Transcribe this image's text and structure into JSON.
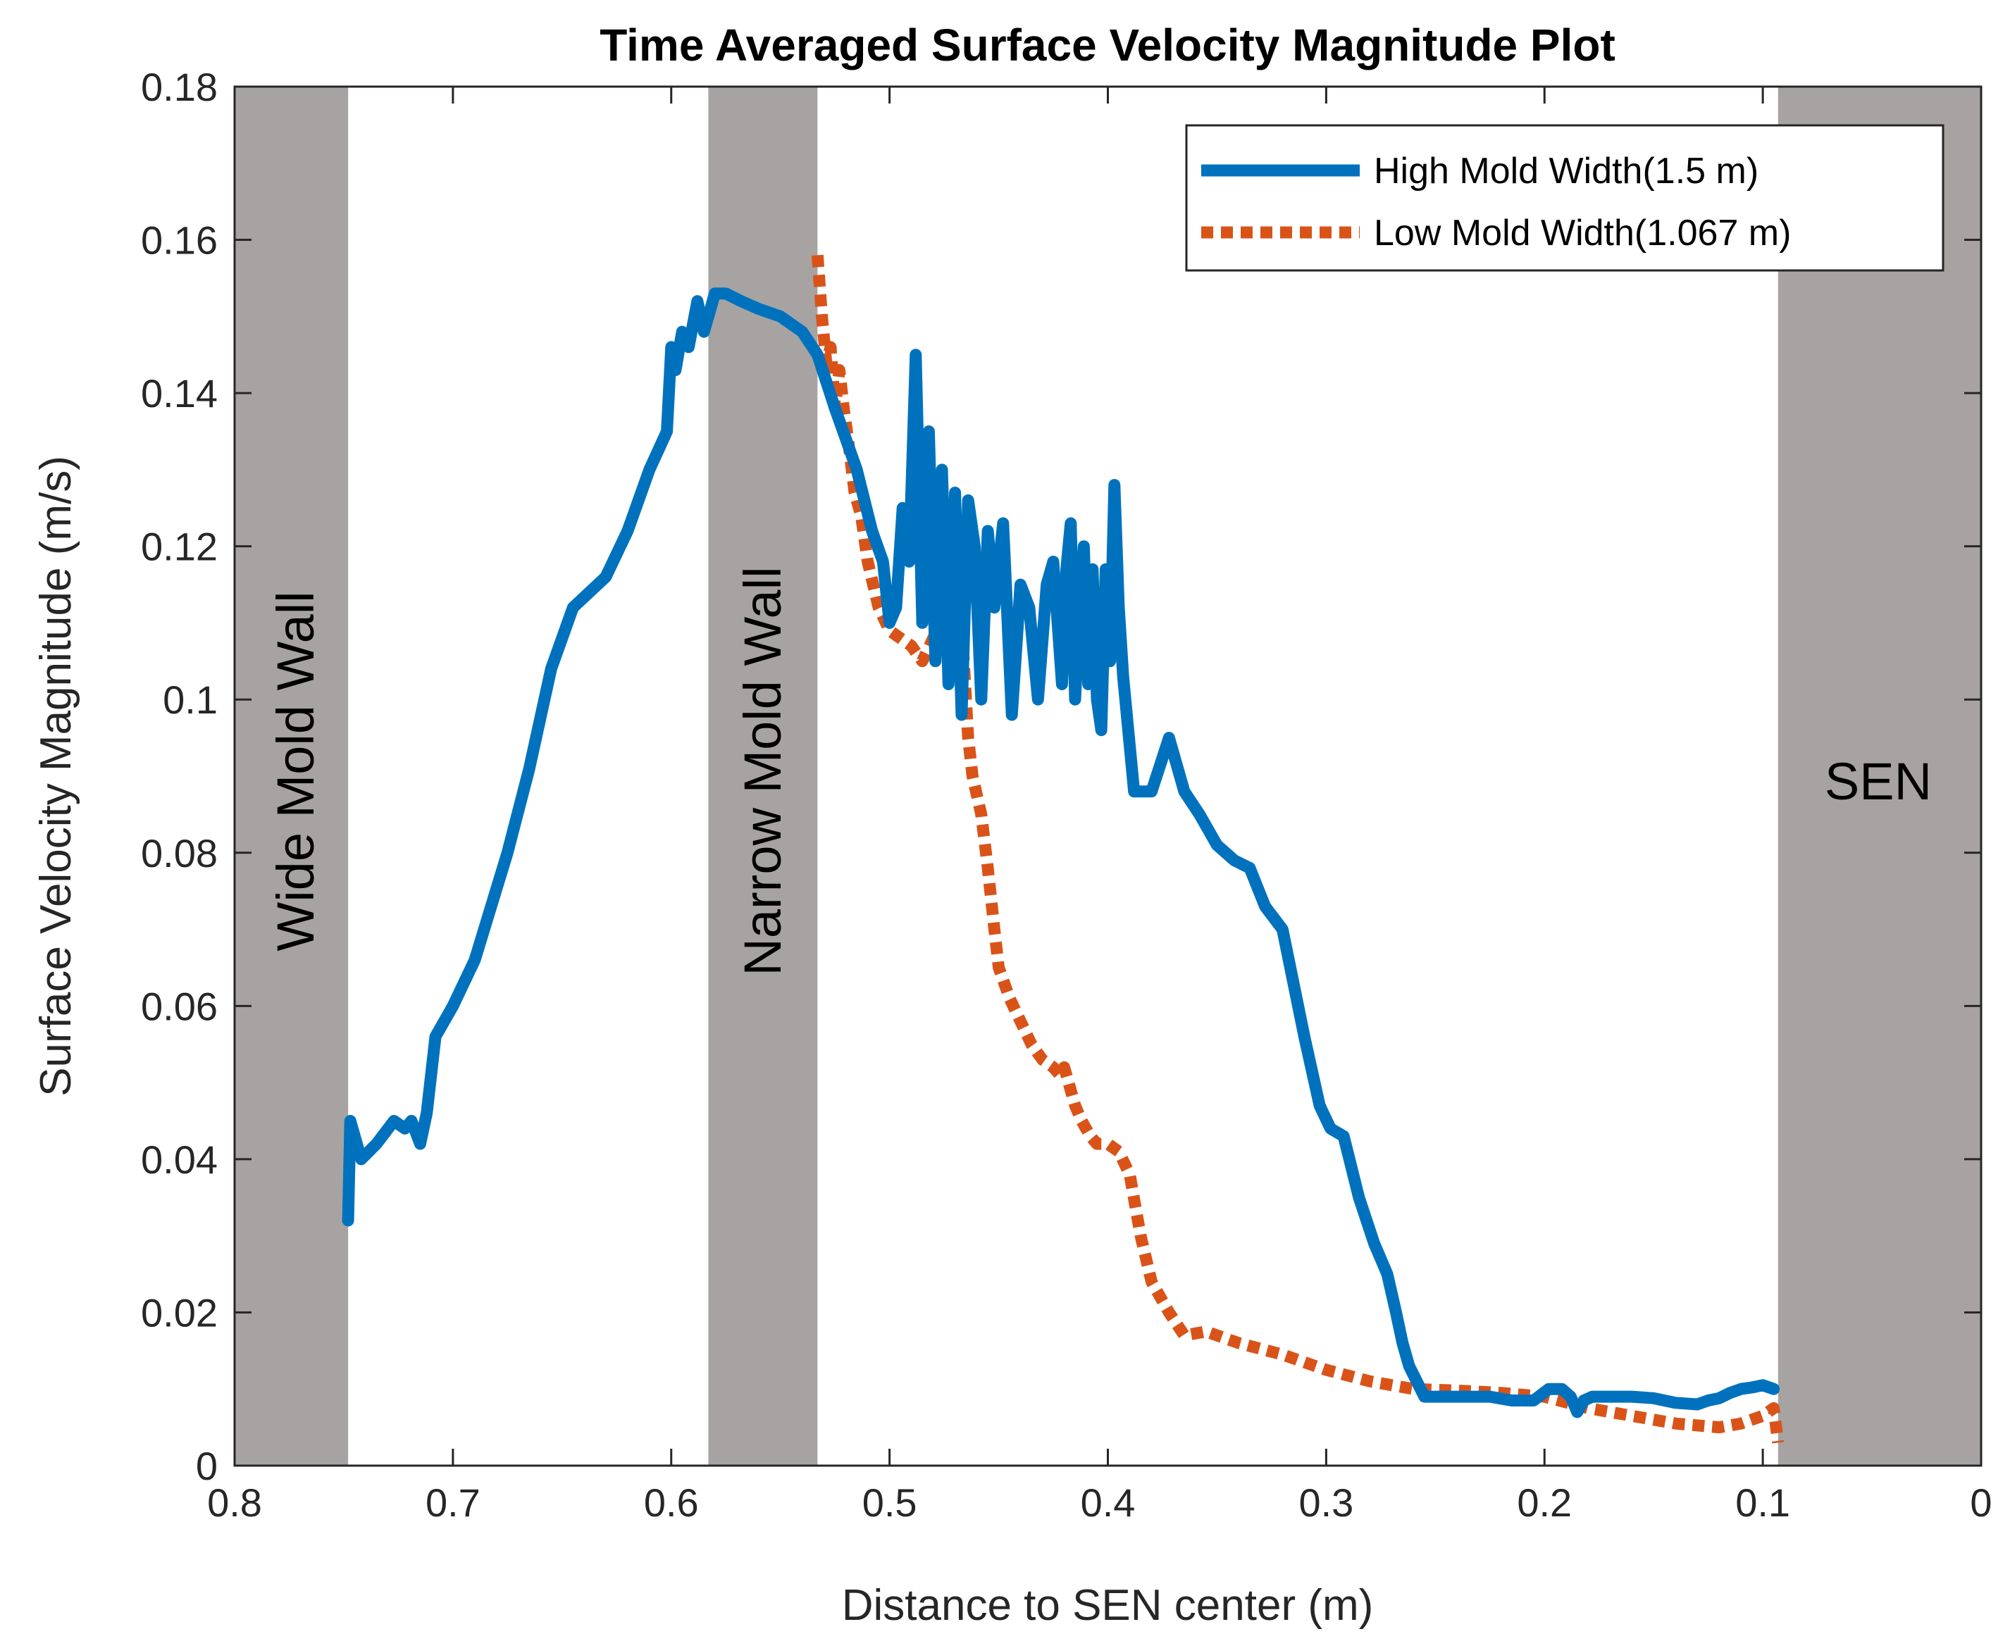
{
  "chart_data": {
    "type": "line",
    "title": "Time Averaged Surface Velocity Magnitude Plot",
    "xlabel": "Distance to SEN center (m)",
    "ylabel": "Surface Velocity Magnitude  (m/s)",
    "xlim": [
      0.8,
      0
    ],
    "ylim": [
      0,
      0.18
    ],
    "x_reversed": true,
    "grid": false,
    "legend_position": "top-right",
    "xticks": [
      0.8,
      0.7,
      0.6,
      0.5,
      0.4,
      0.3,
      0.2,
      0.1,
      0
    ],
    "xtick_labels": [
      "0.8",
      "0.7",
      "0.6",
      "0.5",
      "0.4",
      "0.3",
      "0.2",
      "0.1",
      "0"
    ],
    "yticks": [
      0,
      0.02,
      0.04,
      0.06,
      0.08,
      0.1,
      0.12,
      0.14,
      0.16,
      0.18
    ],
    "ytick_labels": [
      "0",
      "0.02",
      "0.04",
      "0.06",
      "0.08",
      "0.1",
      "0.12",
      "0.14",
      "0.16",
      "0.18"
    ],
    "shaded_regions": [
      {
        "name": "wide-mold-wall",
        "label": "Wide Mold Wall",
        "x_from": 0.8,
        "x_to": 0.748,
        "color": "#a7a3a3"
      },
      {
        "name": "narrow-mold-wall",
        "label": "Narrow Mold Wall",
        "x_from": 0.583,
        "x_to": 0.533,
        "color": "#a7a3a3"
      },
      {
        "name": "sen",
        "label": "SEN",
        "x_from": 0.093,
        "x_to": 0.0,
        "color": "#a7a3a3"
      }
    ],
    "series": [
      {
        "name": "High Mold Width(1.5 m)",
        "color": "#0072bd",
        "style": "solid",
        "x": [
          0.748,
          0.747,
          0.746,
          0.742,
          0.735,
          0.727,
          0.722,
          0.719,
          0.715,
          0.712,
          0.708,
          0.7,
          0.69,
          0.675,
          0.665,
          0.655,
          0.645,
          0.63,
          0.62,
          0.61,
          0.602,
          0.6,
          0.598,
          0.595,
          0.592,
          0.588,
          0.585,
          0.58,
          0.575,
          0.568,
          0.56,
          0.55,
          0.54,
          0.533,
          0.525,
          0.515,
          0.508,
          0.503,
          0.5,
          0.497,
          0.494,
          0.491,
          0.488,
          0.485,
          0.482,
          0.479,
          0.476,
          0.473,
          0.47,
          0.467,
          0.464,
          0.461,
          0.458,
          0.455,
          0.452,
          0.448,
          0.444,
          0.44,
          0.436,
          0.432,
          0.428,
          0.425,
          0.423,
          0.421,
          0.419,
          0.417,
          0.415,
          0.413,
          0.411,
          0.409,
          0.407,
          0.405,
          0.403,
          0.401,
          0.399,
          0.397,
          0.395,
          0.393,
          0.388,
          0.38,
          0.372,
          0.365,
          0.358,
          0.35,
          0.342,
          0.335,
          0.328,
          0.32,
          0.31,
          0.303,
          0.298,
          0.292,
          0.285,
          0.278,
          0.272,
          0.268,
          0.265,
          0.262,
          0.255,
          0.245,
          0.235,
          0.225,
          0.215,
          0.205,
          0.198,
          0.192,
          0.188,
          0.185,
          0.182,
          0.178,
          0.17,
          0.16,
          0.15,
          0.14,
          0.13,
          0.125,
          0.12,
          0.115,
          0.11,
          0.105,
          0.1,
          0.095
        ],
        "y": [
          0.032,
          0.045,
          0.044,
          0.04,
          0.042,
          0.045,
          0.044,
          0.045,
          0.042,
          0.046,
          0.056,
          0.06,
          0.066,
          0.08,
          0.091,
          0.104,
          0.112,
          0.116,
          0.122,
          0.13,
          0.135,
          0.146,
          0.143,
          0.148,
          0.146,
          0.152,
          0.148,
          0.153,
          0.153,
          0.152,
          0.151,
          0.15,
          0.148,
          0.145,
          0.138,
          0.13,
          0.122,
          0.118,
          0.11,
          0.112,
          0.125,
          0.118,
          0.145,
          0.11,
          0.135,
          0.105,
          0.13,
          0.102,
          0.127,
          0.098,
          0.126,
          0.12,
          0.1,
          0.122,
          0.112,
          0.123,
          0.098,
          0.115,
          0.112,
          0.1,
          0.115,
          0.118,
          0.11,
          0.102,
          0.117,
          0.123,
          0.1,
          0.112,
          0.12,
          0.102,
          0.117,
          0.1,
          0.096,
          0.117,
          0.105,
          0.128,
          0.112,
          0.103,
          0.088,
          0.088,
          0.095,
          0.088,
          0.085,
          0.081,
          0.079,
          0.078,
          0.073,
          0.07,
          0.056,
          0.047,
          0.044,
          0.043,
          0.035,
          0.029,
          0.025,
          0.02,
          0.016,
          0.013,
          0.009,
          0.009,
          0.009,
          0.009,
          0.0085,
          0.0085,
          0.01,
          0.01,
          0.009,
          0.007,
          0.0085,
          0.009,
          0.009,
          0.009,
          0.0088,
          0.0082,
          0.008,
          0.0085,
          0.0088,
          0.0095,
          0.01,
          0.0102,
          0.0105,
          0.01
        ]
      },
      {
        "name": "Low Mold Width(1.067 m)",
        "color": "#d95319",
        "style": "dotted",
        "x": [
          0.533,
          0.531,
          0.529,
          0.527,
          0.525,
          0.523,
          0.521,
          0.519,
          0.516,
          0.513,
          0.51,
          0.505,
          0.5,
          0.495,
          0.49,
          0.485,
          0.48,
          0.477,
          0.474,
          0.472,
          0.47,
          0.468,
          0.466,
          0.464,
          0.462,
          0.458,
          0.455,
          0.452,
          0.45,
          0.445,
          0.44,
          0.435,
          0.43,
          0.425,
          0.422,
          0.42,
          0.418,
          0.415,
          0.412,
          0.408,
          0.405,
          0.4,
          0.395,
          0.39,
          0.385,
          0.38,
          0.372,
          0.365,
          0.355,
          0.34,
          0.32,
          0.3,
          0.28,
          0.26,
          0.24,
          0.22,
          0.2,
          0.18,
          0.16,
          0.14,
          0.12,
          0.11,
          0.1,
          0.095,
          0.093
        ],
        "y": [
          0.158,
          0.15,
          0.144,
          0.146,
          0.138,
          0.143,
          0.138,
          0.134,
          0.127,
          0.124,
          0.118,
          0.112,
          0.109,
          0.108,
          0.107,
          0.105,
          0.108,
          0.11,
          0.115,
          0.113,
          0.12,
          0.115,
          0.105,
          0.095,
          0.09,
          0.085,
          0.078,
          0.07,
          0.065,
          0.061,
          0.058,
          0.055,
          0.053,
          0.052,
          0.051,
          0.052,
          0.05,
          0.047,
          0.045,
          0.043,
          0.042,
          0.042,
          0.041,
          0.038,
          0.03,
          0.024,
          0.02,
          0.017,
          0.0175,
          0.016,
          0.0145,
          0.0125,
          0.011,
          0.01,
          0.0098,
          0.0095,
          0.009,
          0.0075,
          0.0065,
          0.0055,
          0.005,
          0.0055,
          0.0065,
          0.0075,
          0.003
        ]
      }
    ]
  }
}
